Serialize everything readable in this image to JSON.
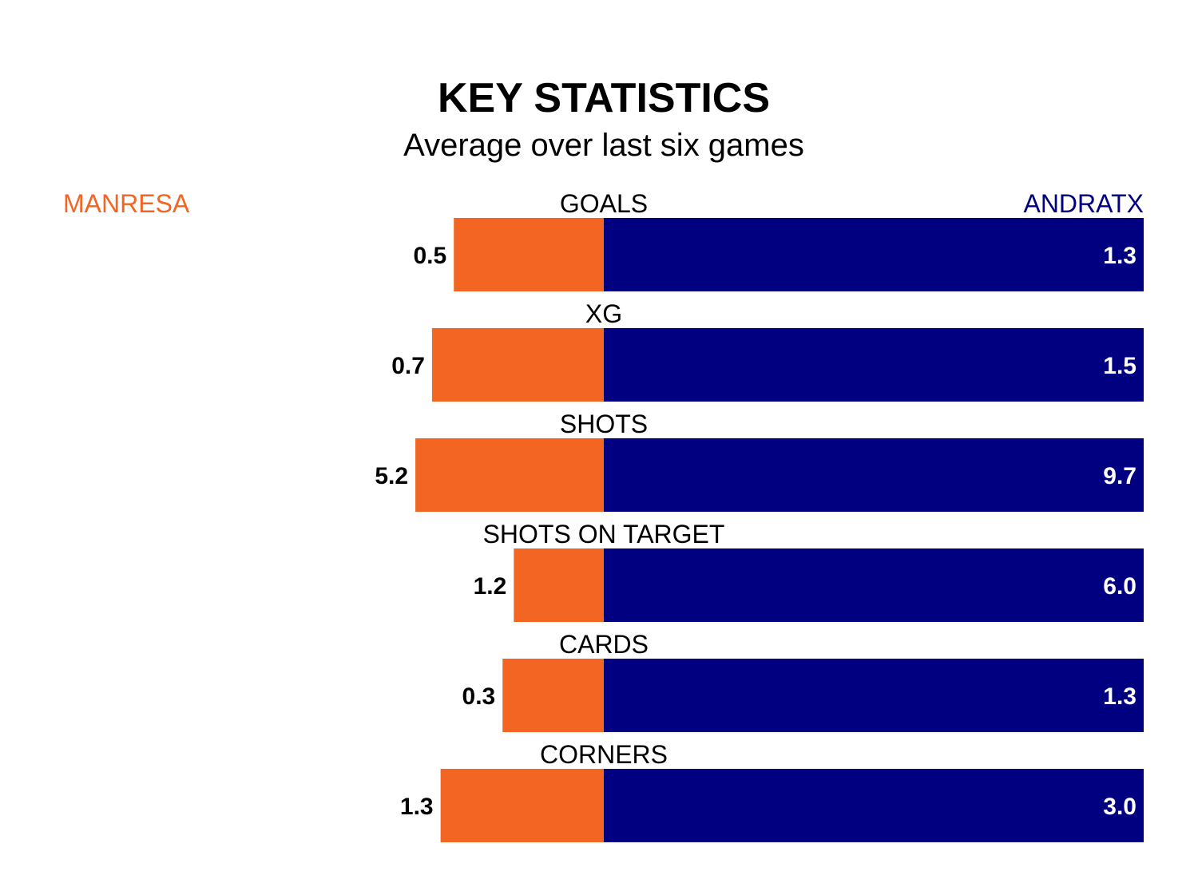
{
  "chart_data": {
    "type": "bar",
    "title": "KEY STATISTICS",
    "subtitle": "Average over last six games",
    "categories": [
      "GOALS",
      "XG",
      "SHOTS",
      "SHOTS ON TARGET",
      "CARDS",
      "CORNERS"
    ],
    "series": [
      {
        "name": "MANRESA",
        "values": [
          "0.5",
          "0.7",
          "5.2",
          "1.2",
          "0.3",
          "1.3"
        ]
      },
      {
        "name": "ANDRATX",
        "values": [
          "1.3",
          "1.5",
          "9.7",
          "6.0",
          "1.3",
          "3.0"
        ]
      }
    ],
    "colors": {
      "home": "#f26522",
      "away": "#000080",
      "text": "#000000",
      "inside_label": "#ffffff"
    }
  }
}
